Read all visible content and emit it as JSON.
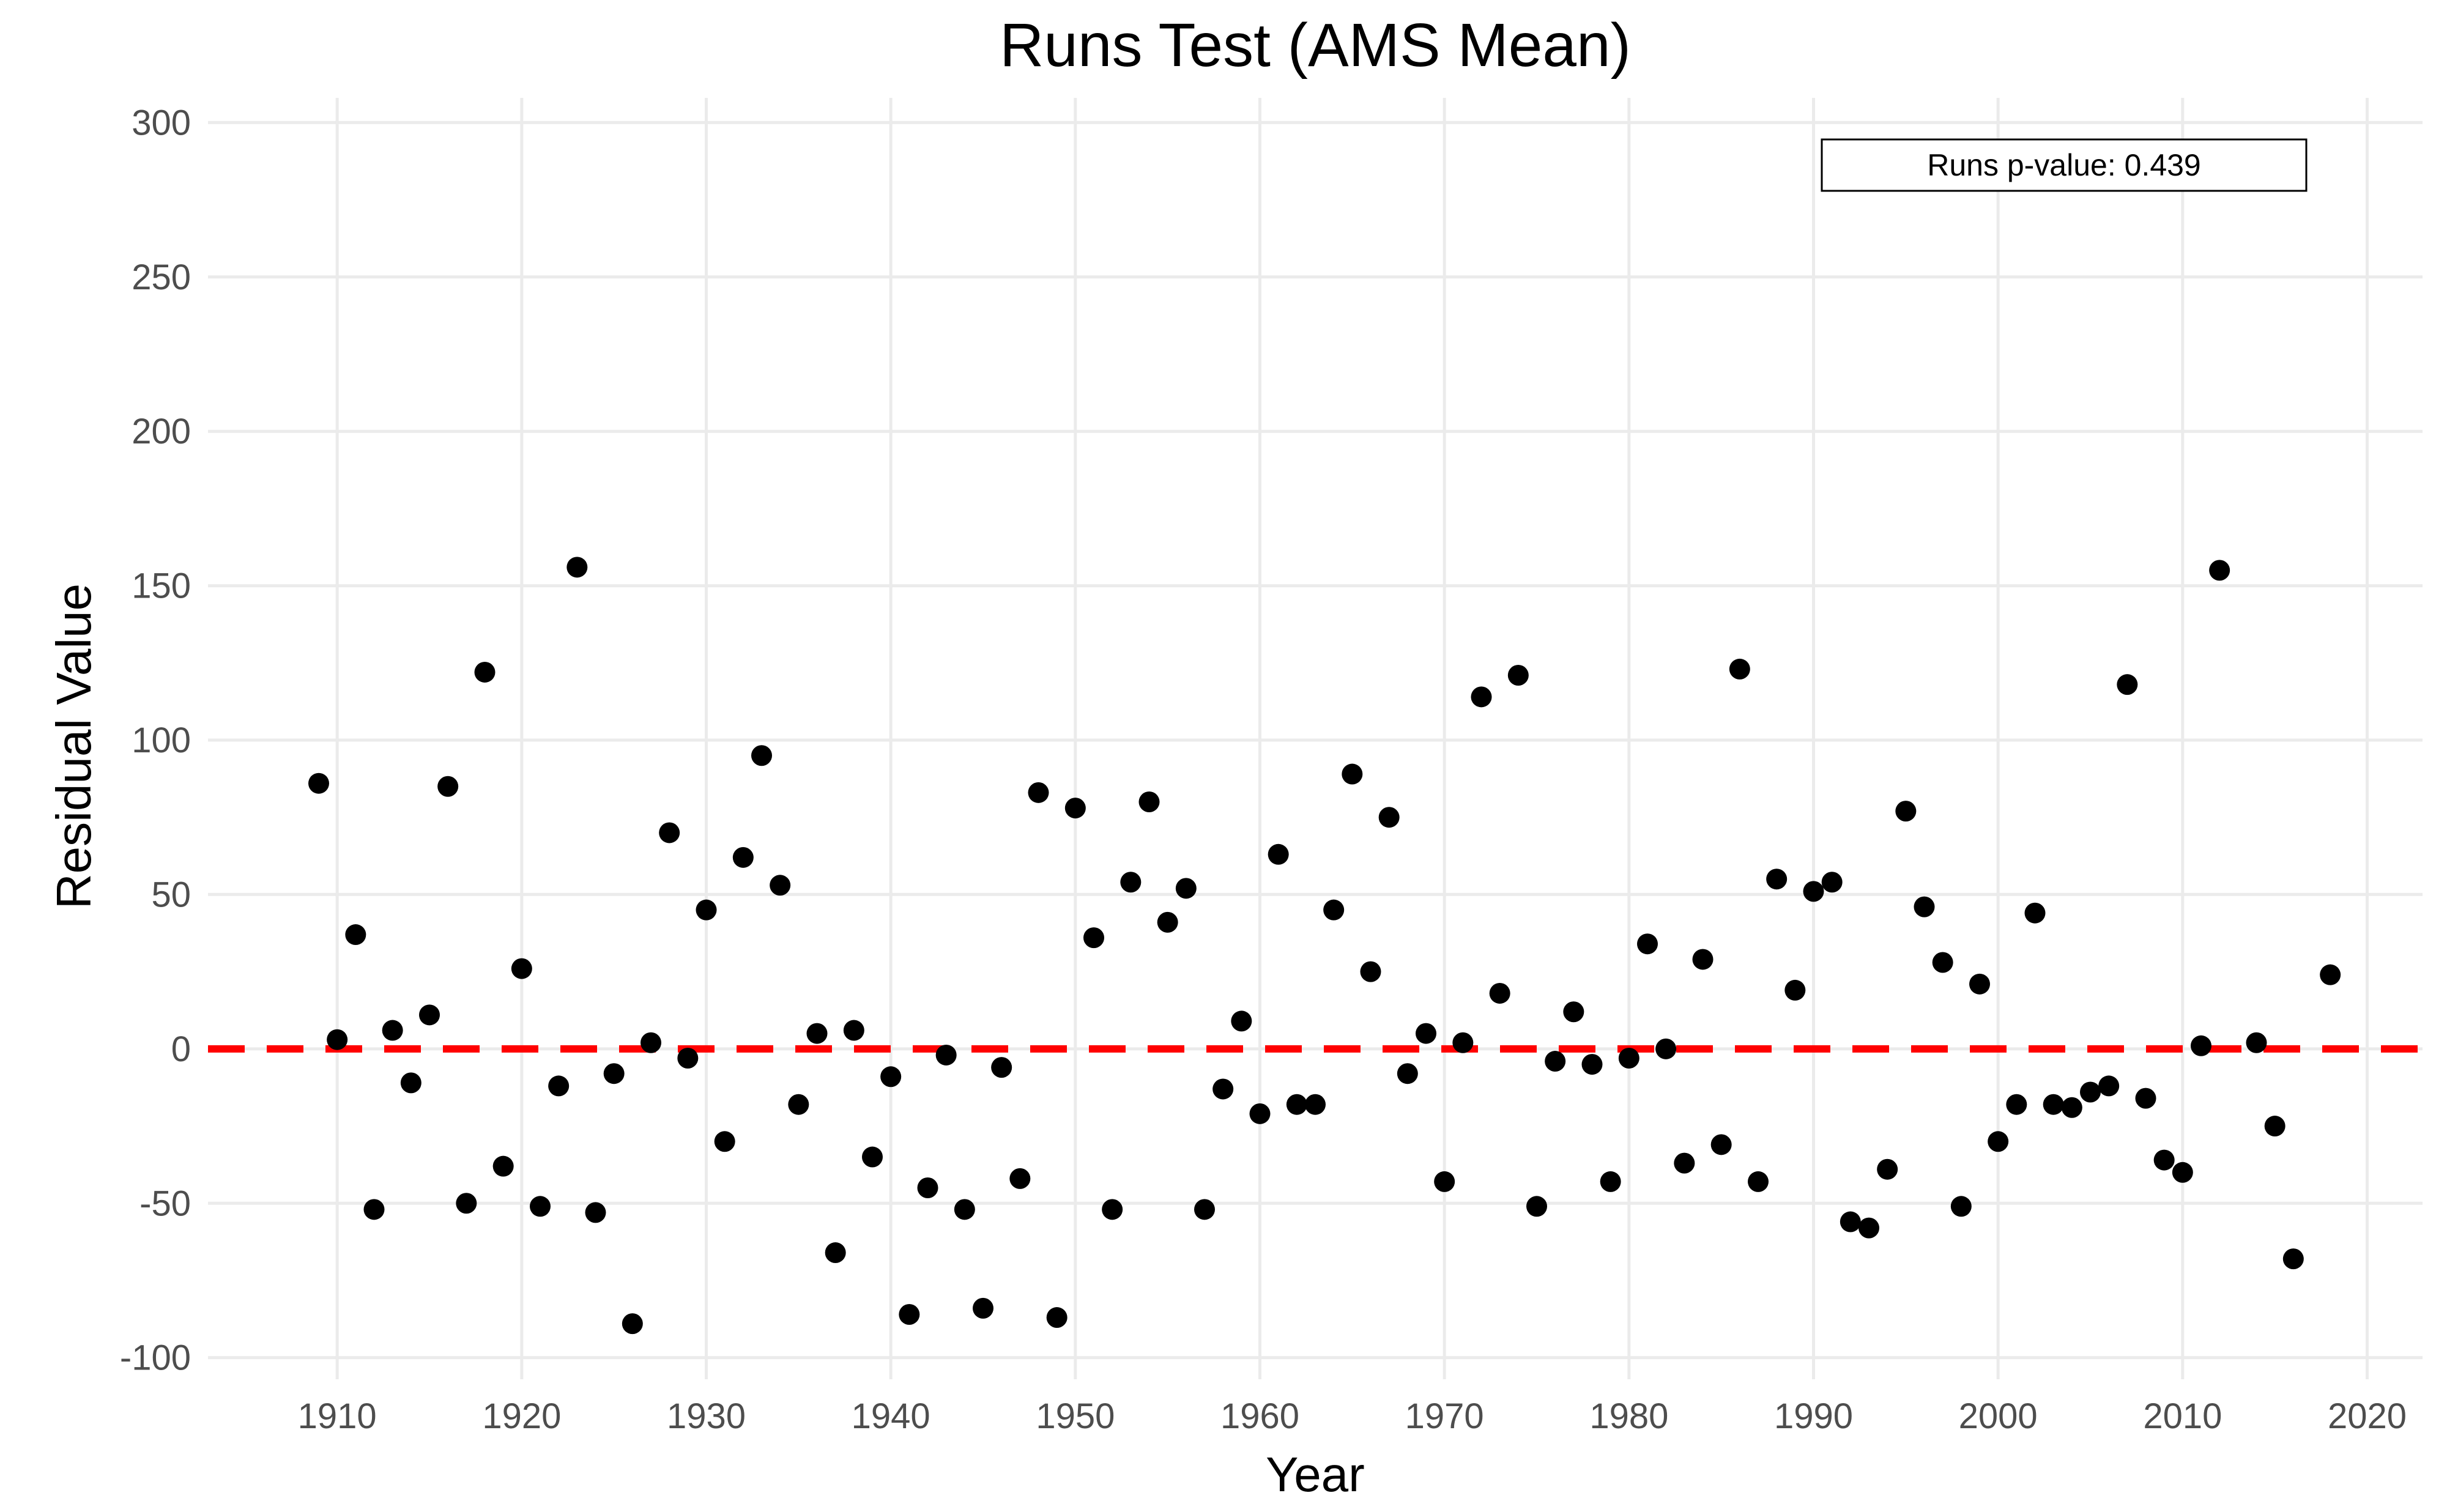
{
  "chart_data": {
    "type": "scatter",
    "title": "Runs Test (AMS Mean)",
    "xlabel": "Year",
    "ylabel": "Residual Value",
    "xlim": [
      1903,
      2023
    ],
    "ylim": [
      -107,
      308
    ],
    "x_ticks": [
      1910,
      1920,
      1930,
      1940,
      1950,
      1960,
      1970,
      1980,
      1990,
      2000,
      2010,
      2020
    ],
    "y_ticks": [
      -100,
      -50,
      0,
      50,
      100,
      150,
      200,
      250,
      300
    ],
    "y_tick_labels": [
      "-100",
      "-50",
      "0",
      "50",
      "100",
      "150",
      "200",
      "250",
      "300"
    ],
    "grid": true,
    "reference_line": {
      "y": 0,
      "style": "dashed",
      "color": "#ff0000"
    },
    "annotation": "Runs p-value: 0.439",
    "annotation_position": "top-right",
    "point_color": "#000000",
    "points": [
      [
        1909,
        86
      ],
      [
        1910,
        3
      ],
      [
        1911,
        37
      ],
      [
        1912,
        -52
      ],
      [
        1913,
        6
      ],
      [
        1914,
        -11
      ],
      [
        1915,
        11
      ],
      [
        1916,
        85
      ],
      [
        1917,
        -50
      ],
      [
        1918,
        122
      ],
      [
        1919,
        -38
      ],
      [
        1920,
        26
      ],
      [
        1921,
        -51
      ],
      [
        1922,
        -12
      ],
      [
        1923,
        156
      ],
      [
        1924,
        -53
      ],
      [
        1925,
        -8
      ],
      [
        1926,
        -89
      ],
      [
        1927,
        2
      ],
      [
        1928,
        70
      ],
      [
        1929,
        -3
      ],
      [
        1930,
        45
      ],
      [
        1931,
        -30
      ],
      [
        1932,
        62
      ],
      [
        1933,
        95
      ],
      [
        1934,
        53
      ],
      [
        1935,
        -18
      ],
      [
        1936,
        5
      ],
      [
        1937,
        -66
      ],
      [
        1938,
        6
      ],
      [
        1939,
        -35
      ],
      [
        1940,
        -9
      ],
      [
        1941,
        -86
      ],
      [
        1942,
        -45
      ],
      [
        1943,
        -2
      ],
      [
        1944,
        -52
      ],
      [
        1945,
        -84
      ],
      [
        1946,
        -6
      ],
      [
        1947,
        -42
      ],
      [
        1948,
        83
      ],
      [
        1949,
        -87
      ],
      [
        1950,
        78
      ],
      [
        1951,
        36
      ],
      [
        1952,
        -52
      ],
      [
        1953,
        54
      ],
      [
        1954,
        80
      ],
      [
        1955,
        41
      ],
      [
        1956,
        52
      ],
      [
        1957,
        -52
      ],
      [
        1958,
        -13
      ],
      [
        1959,
        9
      ],
      [
        1960,
        -21
      ],
      [
        1961,
        63
      ],
      [
        1962,
        -18
      ],
      [
        1963,
        -18
      ],
      [
        1964,
        45
      ],
      [
        1965,
        89
      ],
      [
        1966,
        25
      ],
      [
        1967,
        75
      ],
      [
        1968,
        -8
      ],
      [
        1969,
        5
      ],
      [
        1970,
        -43
      ],
      [
        1971,
        2
      ],
      [
        1972,
        114
      ],
      [
        1973,
        18
      ],
      [
        1974,
        121
      ],
      [
        1975,
        -51
      ],
      [
        1976,
        -4
      ],
      [
        1977,
        12
      ],
      [
        1978,
        -5
      ],
      [
        1979,
        -43
      ],
      [
        1980,
        -3
      ],
      [
        1981,
        34
      ],
      [
        1982,
        0
      ],
      [
        1983,
        -37
      ],
      [
        1984,
        29
      ],
      [
        1985,
        -31
      ],
      [
        1986,
        123
      ],
      [
        1987,
        -43
      ],
      [
        1988,
        55
      ],
      [
        1989,
        19
      ],
      [
        1990,
        51
      ],
      [
        1991,
        54
      ],
      [
        1992,
        -56
      ],
      [
        1993,
        -58
      ],
      [
        1994,
        -39
      ],
      [
        1995,
        77
      ],
      [
        1996,
        46
      ],
      [
        1997,
        28
      ],
      [
        1998,
        -51
      ],
      [
        1999,
        21
      ],
      [
        2000,
        -30
      ],
      [
        2001,
        -18
      ],
      [
        2002,
        44
      ],
      [
        2003,
        -18
      ],
      [
        2004,
        -19
      ],
      [
        2005,
        -14
      ],
      [
        2006,
        -12
      ],
      [
        2007,
        118
      ],
      [
        2008,
        -16
      ],
      [
        2009,
        -36
      ],
      [
        2010,
        -40
      ],
      [
        2011,
        1
      ],
      [
        2012,
        155
      ],
      [
        2014,
        2
      ],
      [
        2015,
        -25
      ],
      [
        2016,
        -68
      ],
      [
        2018,
        24
      ]
    ]
  }
}
